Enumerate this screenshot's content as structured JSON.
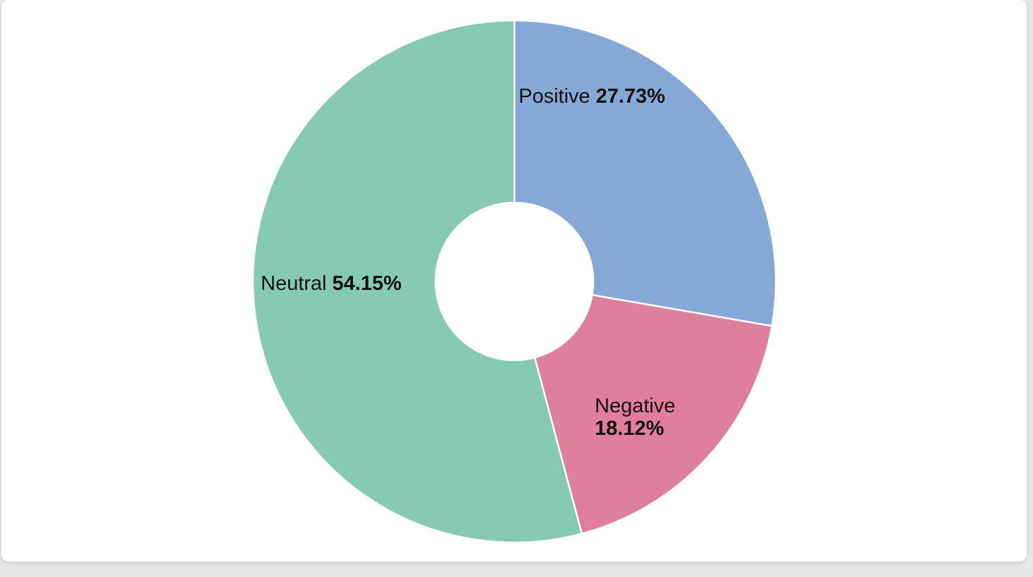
{
  "chart_data": {
    "type": "pie",
    "donut": true,
    "slices": [
      {
        "label": "Positive",
        "value": 27.73,
        "display": "27.73%",
        "color": "#85a8d6"
      },
      {
        "label": "Negative",
        "value": 18.12,
        "display": "18.12%",
        "color": "#e07f9d"
      },
      {
        "label": "Neutral",
        "value": 54.15,
        "display": "54.15%",
        "color": "#87cab3"
      }
    ]
  }
}
